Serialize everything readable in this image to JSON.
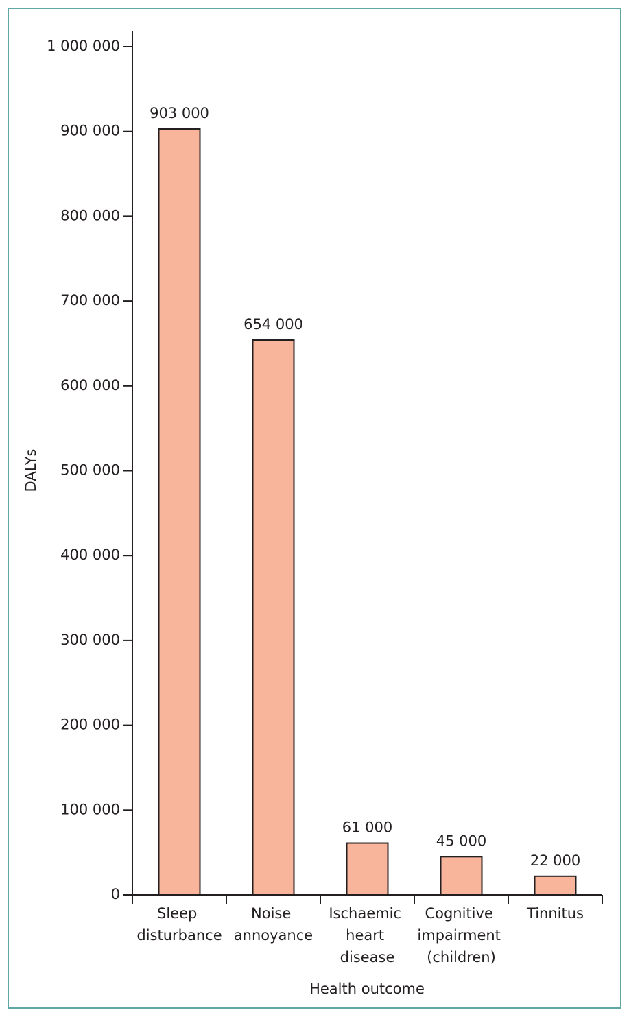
{
  "chart_data": {
    "type": "bar",
    "categories": [
      "Sleep disturbance",
      "Noise annoyance",
      "Ischaemic heart disease",
      "Cognitive impairment (children)",
      "Tinnitus"
    ],
    "values": [
      903000,
      654000,
      61000,
      45000,
      22000
    ],
    "value_labels": [
      "903 000",
      "654 000",
      "61 000",
      "45 000",
      "22 000"
    ],
    "color": "#f9b59b",
    "y_label": "DALYs",
    "x_label": "Health outcome",
    "ylim": [
      0,
      1000000
    ],
    "yticks": [
      0,
      {
        "value": 100000,
        "label": "100 000"
      },
      {
        "value": 200000,
        "label": "200 000"
      },
      {
        "value": 300000,
        "label": "300 000"
      },
      {
        "value": 400000,
        "label": "400 000"
      },
      {
        "value": 500000,
        "label": "500 000"
      },
      {
        "value": 600000,
        "label": "600 000"
      },
      {
        "value": 700000,
        "label": "700 000"
      },
      {
        "value": 800000,
        "label": "800 000"
      },
      {
        "value": 900000,
        "label": "900 000"
      },
      {
        "value": 1000000,
        "label": "1 000 000"
      }
    ],
    "grid": false
  }
}
